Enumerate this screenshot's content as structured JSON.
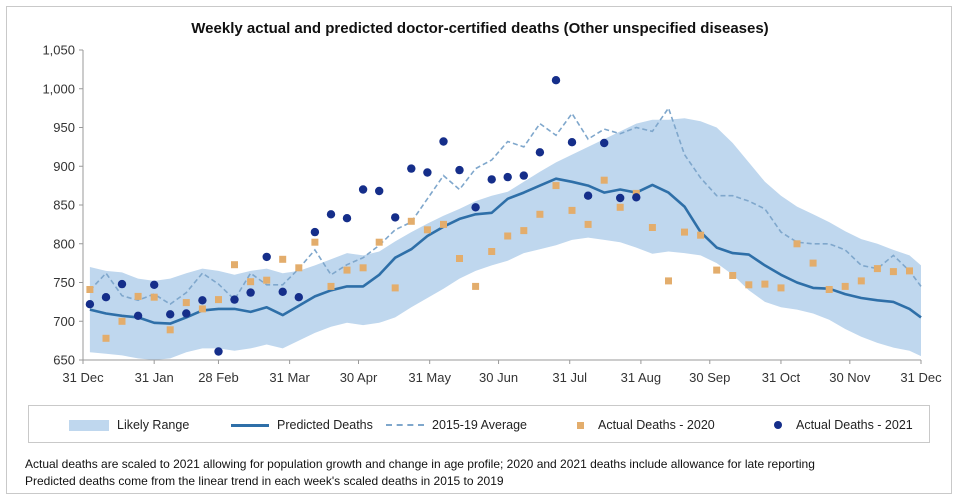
{
  "chart_data": {
    "type": "line",
    "title": "Weekly actual and predicted doctor-certified deaths (Other unspecified diseases)",
    "xlabel": "",
    "ylabel": "",
    "ylim": [
      650,
      1050
    ],
    "yticks": [
      650,
      700,
      750,
      800,
      850,
      900,
      950,
      1000,
      1050
    ],
    "ytick_labels": [
      "650",
      "700",
      "750",
      "800",
      "850",
      "900",
      "950",
      "1,000",
      "1,050"
    ],
    "xlim": [
      0,
      365
    ],
    "xticks": [
      0,
      31,
      59,
      90,
      120,
      151,
      181,
      212,
      243,
      273,
      304,
      334,
      365
    ],
    "xtick_labels": [
      "31 Dec",
      "31 Jan",
      "28 Feb",
      "31 Mar",
      "30 Apr",
      "31 May",
      "30 Jun",
      "31 Jul",
      "31 Aug",
      "30 Sep",
      "31 Oct",
      "30 Nov",
      "31 Dec"
    ],
    "series": [
      {
        "name": "Likely Range",
        "kind": "band",
        "x": [
          3,
          10,
          17,
          24,
          31,
          38,
          45,
          52,
          59,
          66,
          73,
          80,
          87,
          94,
          101,
          108,
          115,
          122,
          129,
          136,
          143,
          150,
          157,
          164,
          171,
          178,
          185,
          192,
          199,
          206,
          213,
          220,
          227,
          234,
          241,
          248,
          255,
          262,
          269,
          276,
          283,
          290,
          297,
          304,
          311,
          318,
          325,
          332,
          339,
          346,
          353,
          360,
          365
        ],
        "upper": [
          770,
          765,
          763,
          755,
          752,
          755,
          762,
          768,
          765,
          760,
          765,
          768,
          762,
          765,
          772,
          780,
          788,
          785,
          790,
          803,
          815,
          826,
          836,
          845,
          855,
          862,
          867,
          880,
          893,
          905,
          915,
          925,
          935,
          945,
          955,
          960,
          960,
          962,
          958,
          950,
          930,
          905,
          880,
          862,
          848,
          838,
          828,
          816,
          806,
          800,
          792,
          785,
          772
        ],
        "lower": [
          660,
          658,
          656,
          652,
          650,
          652,
          660,
          665,
          665,
          662,
          665,
          670,
          665,
          675,
          685,
          693,
          698,
          695,
          698,
          705,
          718,
          730,
          742,
          755,
          765,
          772,
          778,
          788,
          793,
          798,
          805,
          808,
          805,
          802,
          795,
          787,
          790,
          788,
          785,
          775,
          760,
          740,
          725,
          718,
          715,
          710,
          702,
          690,
          680,
          672,
          666,
          662,
          655
        ]
      },
      {
        "name": "Predicted Deaths",
        "kind": "line",
        "x": [
          3,
          10,
          17,
          24,
          31,
          38,
          45,
          52,
          59,
          66,
          73,
          80,
          87,
          94,
          101,
          108,
          115,
          122,
          129,
          136,
          143,
          150,
          157,
          164,
          171,
          178,
          185,
          192,
          199,
          206,
          213,
          220,
          227,
          234,
          241,
          248,
          255,
          262,
          269,
          276,
          283,
          290,
          297,
          304,
          311,
          318,
          325,
          332,
          339,
          346,
          353,
          360,
          365
        ],
        "values": [
          715,
          710,
          707,
          705,
          698,
          697,
          705,
          714,
          716,
          716,
          712,
          718,
          708,
          720,
          732,
          740,
          745,
          745,
          760,
          782,
          793,
          810,
          822,
          832,
          838,
          840,
          858,
          866,
          875,
          884,
          880,
          875,
          866,
          870,
          866,
          876,
          866,
          848,
          815,
          795,
          788,
          786,
          772,
          760,
          750,
          743,
          742,
          735,
          730,
          727,
          725,
          716,
          705
        ]
      },
      {
        "name": "2015-19 Average",
        "kind": "dashed",
        "x": [
          3,
          10,
          17,
          24,
          31,
          38,
          45,
          52,
          59,
          66,
          73,
          80,
          87,
          94,
          101,
          108,
          115,
          122,
          129,
          136,
          143,
          150,
          157,
          164,
          171,
          178,
          185,
          192,
          199,
          206,
          213,
          220,
          227,
          234,
          241,
          248,
          255,
          262,
          269,
          276,
          283,
          290,
          297,
          304,
          311,
          318,
          325,
          332,
          339,
          346,
          353,
          360,
          365
        ],
        "values": [
          740,
          762,
          733,
          727,
          735,
          722,
          737,
          762,
          748,
          728,
          762,
          747,
          747,
          768,
          792,
          760,
          773,
          782,
          798,
          818,
          828,
          858,
          888,
          870,
          897,
          908,
          932,
          925,
          955,
          940,
          968,
          935,
          948,
          942,
          950,
          945,
          975,
          915,
          885,
          862,
          862,
          855,
          845,
          815,
          802,
          800,
          800,
          792,
          772,
          768,
          785,
          765,
          745
        ]
      },
      {
        "name": "Actual Deaths - 2020",
        "kind": "square",
        "x": [
          3,
          10,
          17,
          24,
          31,
          38,
          45,
          52,
          59,
          66,
          73,
          80,
          87,
          94,
          101,
          108,
          115,
          122,
          129,
          136,
          143,
          150,
          157,
          164,
          171,
          178,
          185,
          192,
          199,
          206,
          213,
          220,
          227,
          234,
          241,
          248,
          255,
          262,
          269,
          276,
          283,
          290,
          297,
          304,
          311,
          318,
          325,
          332,
          339,
          346,
          353,
          360
        ],
        "values": [
          741,
          678,
          700,
          732,
          731,
          689,
          724,
          716,
          728,
          773,
          751,
          753,
          780,
          769,
          802,
          745,
          766,
          769,
          802,
          743,
          829,
          818,
          825,
          781,
          745,
          790,
          810,
          817,
          838,
          875,
          843,
          825,
          882,
          847,
          865,
          821,
          752,
          815,
          811,
          766,
          759,
          747,
          748,
          743,
          800,
          775,
          741,
          745,
          752,
          768,
          764,
          765
        ]
      },
      {
        "name": "Actual Deaths - 2021",
        "kind": "dot",
        "x": [
          3,
          10,
          17,
          24,
          31,
          38,
          45,
          52,
          59,
          66,
          73,
          80,
          87,
          94,
          101,
          108,
          115,
          122,
          129,
          136,
          143,
          150,
          157,
          164,
          171,
          178,
          185,
          192,
          199,
          206,
          213,
          220,
          227,
          234,
          241
        ],
        "values": [
          722,
          731,
          748,
          707,
          747,
          709,
          710,
          727,
          661,
          728,
          737,
          783,
          738,
          731,
          815,
          838,
          833,
          870,
          868,
          834,
          897,
          892,
          932,
          895,
          847,
          883,
          886,
          888,
          918,
          1011,
          931,
          862,
          930,
          859,
          860
        ]
      }
    ],
    "legend": {
      "placement": "bottom"
    },
    "grid": false
  },
  "legend_labels": [
    "Likely Range",
    "Predicted Deaths",
    "2015-19 Average",
    "Actual Deaths - 2020",
    "Actual Deaths - 2021"
  ],
  "colors": {
    "band": "#bfd7ee",
    "predicted": "#2e6fa8",
    "average": "#7fa7cc",
    "actual_2020": "#e3ad6c",
    "actual_2021": "#152e8a",
    "axis": "#999999"
  },
  "footnotes": [
    "Actual deaths are scaled to 2021 allowing for population growth and change in age profile; 2020 and 2021 deaths include allowance for late reporting",
    "Predicted deaths come from the linear trend in each week's scaled deaths in 2015 to 2019"
  ]
}
